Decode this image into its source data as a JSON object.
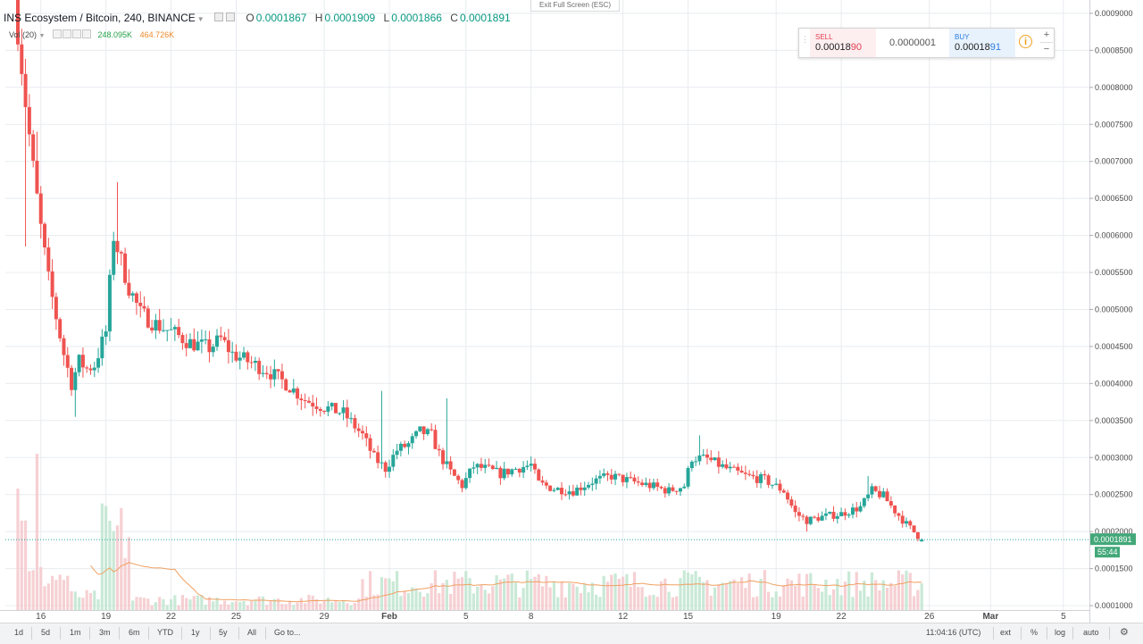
{
  "window": {
    "exit_fullscreen": "Exit Full Screen (ESC)"
  },
  "legend": {
    "symbol": "INS Ecosystem / Bitcoin, 240, BINANCE",
    "open_label": "O",
    "open": "0.0001867",
    "high_label": "H",
    "high": "0.0001909",
    "low_label": "L",
    "low": "0.0001866",
    "close_label": "C",
    "close": "0.0001891"
  },
  "volume_legend": {
    "name": "Vol (20)",
    "value": "248.095K",
    "ma_value": "464.726K"
  },
  "trade_panel": {
    "sell_label": "SELL",
    "sell_price_main": "0.00018",
    "sell_price_tail": "90",
    "spread": "0.0000001",
    "buy_label": "BUY",
    "buy_price_main": "0.00018",
    "buy_price_tail": "91",
    "info_icon": "info-icon",
    "plus": "+",
    "minus": "−"
  },
  "price_axis": {
    "ticks": [
      "0.0009000",
      "0.0008500",
      "0.0008000",
      "0.0007500",
      "0.0007000",
      "0.0006500",
      "0.0006000",
      "0.0005500",
      "0.0005000",
      "0.0004500",
      "0.0004000",
      "0.0003500",
      "0.0003000",
      "0.0002500",
      "0.0002000",
      "0.0001500",
      "0.0001000"
    ],
    "current_price": "0.0001891",
    "countdown": "55:44"
  },
  "time_axis": {
    "ticks": [
      "16",
      "19",
      "22",
      "25",
      "29",
      "Feb",
      "5",
      "8",
      "12",
      "15",
      "19",
      "22",
      "26",
      "Mar",
      "5"
    ]
  },
  "toolbar": {
    "timeframes": [
      "1d",
      "5d",
      "1m",
      "3m",
      "6m",
      "YTD",
      "1y",
      "5y",
      "All"
    ],
    "goto": "Go to...",
    "time": "11:04:16 (UTC)",
    "ext": "ext",
    "percent": "%",
    "log": "log",
    "auto": "auto",
    "settings_icon": "gear-icon"
  },
  "colors": {
    "up": "#26a69a",
    "down": "#ef5350",
    "vol_ma": "#f0a060",
    "grid": "#e8ecef",
    "price_line": "#26a69a"
  },
  "chart_data": {
    "type": "candlestick",
    "symbol": "INS Ecosystem / Bitcoin",
    "interval": "240",
    "exchange": "BINANCE",
    "price_range": [
      9.4e-05,
      0.000918
    ],
    "x_range": [
      0,
      236
    ],
    "x_tick_indices": [
      6,
      23,
      40,
      57,
      80,
      97,
      117,
      134,
      158,
      175,
      198,
      215,
      238,
      254,
      273
    ],
    "grid": true,
    "anchors": [
      [
        0,
        0.00088
      ],
      [
        2,
        0.00078
      ],
      [
        4,
        0.00069
      ],
      [
        6,
        0.00061
      ],
      [
        8,
        0.00054
      ],
      [
        10,
        0.00049
      ],
      [
        12,
        0.00044
      ],
      [
        14,
        0.0004
      ],
      [
        16,
        0.00043
      ],
      [
        18,
        0.00042
      ],
      [
        20,
        0.000425
      ],
      [
        23,
        0.00047
      ],
      [
        25,
        0.0006
      ],
      [
        27,
        0.000565
      ],
      [
        29,
        0.00053
      ],
      [
        32,
        0.000495
      ],
      [
        36,
        0.00048
      ],
      [
        40,
        0.00047
      ],
      [
        45,
        0.000455
      ],
      [
        50,
        0.000448
      ],
      [
        53,
        0.00046
      ],
      [
        56,
        0.00044
      ],
      [
        60,
        0.00043
      ],
      [
        65,
        0.000418
      ],
      [
        70,
        0.0004
      ],
      [
        75,
        0.000378
      ],
      [
        80,
        0.000368
      ],
      [
        85,
        0.00036
      ],
      [
        90,
        0.00033
      ],
      [
        93,
        0.0003
      ],
      [
        96,
        0.000285
      ],
      [
        99,
        0.00031
      ],
      [
        102,
        0.000318
      ],
      [
        105,
        0.000335
      ],
      [
        108,
        0.00033
      ],
      [
        110,
        0.000305
      ],
      [
        113,
        0.00028
      ],
      [
        116,
        0.000262
      ],
      [
        119,
        0.000288
      ],
      [
        122,
        0.000285
      ],
      [
        126,
        0.000278
      ],
      [
        130,
        0.000285
      ],
      [
        134,
        0.00029
      ],
      [
        136,
        0.000265
      ],
      [
        140,
        0.000258
      ],
      [
        145,
        0.000255
      ],
      [
        150,
        0.000268
      ],
      [
        155,
        0.000275
      ],
      [
        160,
        0.000268
      ],
      [
        165,
        0.000262
      ],
      [
        170,
        0.000255
      ],
      [
        174,
        0.000262
      ],
      [
        176,
        0.0003
      ],
      [
        180,
        0.000298
      ],
      [
        185,
        0.000285
      ],
      [
        190,
        0.000275
      ],
      [
        195,
        0.00027
      ],
      [
        200,
        0.000255
      ],
      [
        203,
        0.000225
      ],
      [
        206,
        0.000215
      ],
      [
        210,
        0.00022
      ],
      [
        215,
        0.000224
      ],
      [
        220,
        0.000233
      ],
      [
        223,
        0.000255
      ],
      [
        226,
        0.000248
      ],
      [
        229,
        0.000228
      ],
      [
        232,
        0.00021
      ],
      [
        236,
        0.000189
      ]
    ]
  }
}
